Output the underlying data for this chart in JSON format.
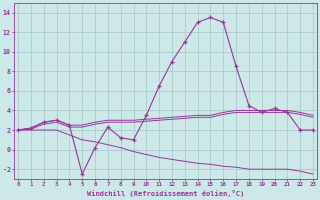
{
  "xlabel": "Windchill (Refroidissement éolien,°C)",
  "hours": [
    0,
    1,
    2,
    3,
    4,
    5,
    6,
    7,
    8,
    9,
    10,
    11,
    12,
    13,
    14,
    15,
    16,
    17,
    18,
    19,
    20,
    21,
    22,
    23
  ],
  "temp": [
    2.0,
    2.2,
    2.8,
    3.0,
    2.5,
    -2.5,
    0.2,
    2.3,
    1.2,
    1.0,
    3.5,
    6.5,
    9.0,
    11.0,
    13.0,
    13.5,
    13.0,
    8.5,
    4.5,
    3.8,
    4.2,
    3.8,
    2.0,
    2.0
  ],
  "line_upper": [
    2.0,
    2.2,
    2.8,
    3.0,
    2.5,
    2.5,
    2.8,
    3.0,
    3.0,
    3.0,
    3.1,
    3.2,
    3.3,
    3.4,
    3.5,
    3.5,
    3.8,
    4.0,
    4.0,
    4.0,
    4.0,
    4.0,
    3.8,
    3.5
  ],
  "line_mid": [
    2.0,
    2.1,
    2.6,
    2.8,
    2.3,
    2.3,
    2.6,
    2.8,
    2.8,
    2.8,
    2.9,
    3.0,
    3.1,
    3.2,
    3.3,
    3.3,
    3.6,
    3.8,
    3.8,
    3.8,
    3.8,
    3.8,
    3.6,
    3.3
  ],
  "line_lower": [
    2.0,
    2.0,
    2.0,
    2.0,
    1.5,
    1.0,
    0.8,
    0.5,
    0.2,
    -0.2,
    -0.5,
    -0.8,
    -1.0,
    -1.2,
    -1.4,
    -1.5,
    -1.7,
    -1.8,
    -2.0,
    -2.0,
    -2.0,
    -2.0,
    -2.2,
    -2.5
  ],
  "color": "#993399",
  "bg_color": "#cce8e8",
  "grid_color": "#aacccc",
  "ylim": [
    -3.0,
    15.0
  ],
  "yticks": [
    -2,
    0,
    2,
    4,
    6,
    8,
    10,
    12,
    14
  ],
  "xlim": [
    -0.3,
    23.3
  ]
}
